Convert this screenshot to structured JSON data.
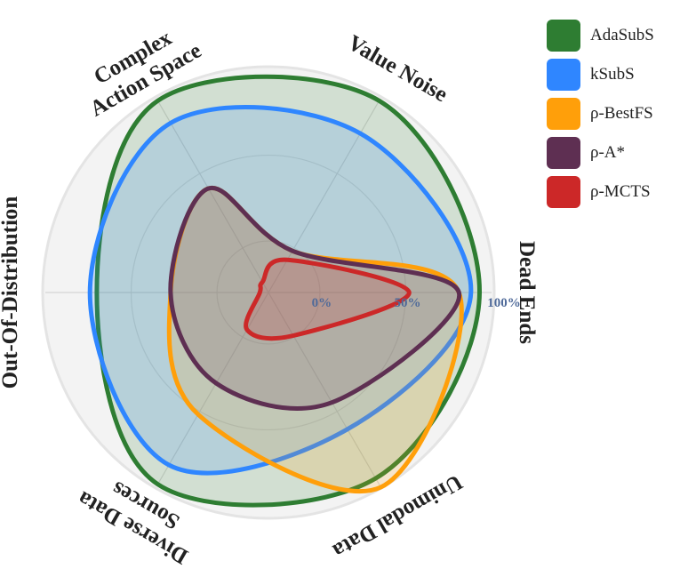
{
  "chart_data": {
    "type": "radar",
    "axes": [
      [
        "Dead Ends"
      ],
      [
        "Value Noise"
      ],
      [
        "Complex",
        "Action Space"
      ],
      [
        "Out-Of-Distribution"
      ],
      [
        "Diverse Data",
        "Sources"
      ],
      [
        "Unimodal Data"
      ]
    ],
    "r_ticks": [
      {
        "value": 0,
        "label": "0%"
      },
      {
        "value": 50,
        "label": "50%"
      },
      {
        "value": 100,
        "label": "100%"
      }
    ],
    "rlim": [
      -30,
      100
    ],
    "grid": true,
    "legend_position": "top-right",
    "series": [
      {
        "name": "AdaSubS",
        "color": "#2e7d32",
        "values": [
          93,
          99,
          99,
          70,
          99,
          95
        ]
      },
      {
        "name": "kSubS",
        "color": "#2f86ff",
        "values": [
          88,
          77,
          84,
          74,
          86,
          62
        ]
      },
      {
        "name": "ρ-BestFS",
        "color": "#ff9f0a",
        "values": [
          81,
          -2,
          40,
          27,
          52,
          101
        ]
      },
      {
        "name": "ρ-A*",
        "color": "#5e2f52",
        "values": [
          81,
          -2,
          40,
          27,
          31,
          44
        ]
      },
      {
        "name": "ρ-MCTS",
        "color": "#cc2828",
        "values": [
          52,
          -8,
          -23,
          -25,
          -5,
          -1
        ]
      }
    ]
  }
}
